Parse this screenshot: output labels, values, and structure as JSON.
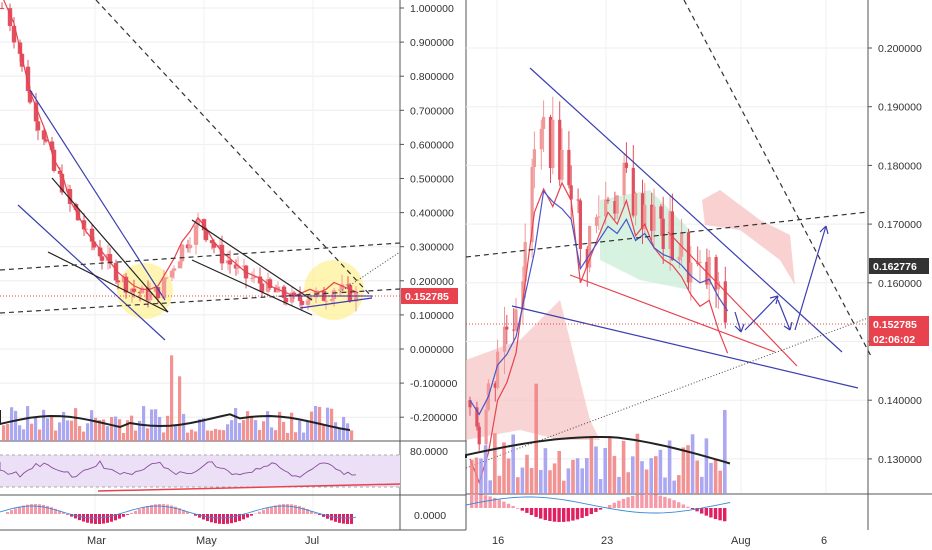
{
  "colors": {
    "up": "#f09999",
    "down": "#e0505f",
    "ma_red": "#e8424f",
    "ma_blue": "#4a55c8",
    "trend_blue": "#3a3fb0",
    "dashed": "#333333",
    "price_line": "#e8424f",
    "highlight": "#ffef8a",
    "rsi_fill": "#ece0f6",
    "vol_up": "#9c98ef",
    "vol_down": "#f08080",
    "badge_red": "#e8424f",
    "badge_dark": "#333333",
    "cloud_red": "#f7c2c2",
    "cloud_green": "#c8ecd6"
  },
  "chart_data": [
    {
      "type": "candlestick",
      "title": "",
      "x_ticks": [
        "Mar",
        "May",
        "Jul"
      ],
      "y_ticks": [
        "1.000000",
        "0.900000",
        "0.800000",
        "0.700000",
        "0.600000",
        "0.500000",
        "0.400000",
        "0.300000",
        "0.200000",
        "0.100000",
        "0.000000",
        "-0.100000",
        "-0.200000"
      ],
      "ylim": [
        -0.2,
        1.0
      ],
      "price_badge": "0.152785",
      "price_path": [
        [
          0,
          1.0
        ],
        [
          3,
          0.92
        ],
        [
          5,
          0.82
        ],
        [
          7,
          0.72
        ],
        [
          9,
          0.66
        ],
        [
          11,
          0.6
        ],
        [
          13,
          0.52
        ],
        [
          15,
          0.48
        ],
        [
          17,
          0.42
        ],
        [
          19,
          0.38
        ],
        [
          21,
          0.33
        ],
        [
          23,
          0.3
        ],
        [
          25,
          0.27
        ],
        [
          27,
          0.24
        ],
        [
          29,
          0.21
        ],
        [
          31,
          0.19
        ],
        [
          33,
          0.17
        ],
        [
          35,
          0.16
        ],
        [
          37,
          0.16
        ],
        [
          39,
          0.17
        ],
        [
          41,
          0.21
        ],
        [
          43,
          0.25
        ],
        [
          45,
          0.3
        ],
        [
          47,
          0.33
        ],
        [
          49,
          0.37
        ],
        [
          51,
          0.34
        ],
        [
          53,
          0.3
        ],
        [
          55,
          0.27
        ],
        [
          57,
          0.25
        ],
        [
          59,
          0.23
        ],
        [
          61,
          0.21
        ],
        [
          63,
          0.2
        ],
        [
          65,
          0.19
        ],
        [
          67,
          0.17
        ],
        [
          69,
          0.16
        ],
        [
          71,
          0.15
        ],
        [
          73,
          0.14
        ],
        [
          75,
          0.15
        ],
        [
          77,
          0.16
        ],
        [
          79,
          0.15
        ],
        [
          81,
          0.16
        ],
        [
          83,
          0.18
        ],
        [
          85,
          0.17
        ],
        [
          87,
          0.16
        ],
        [
          89,
          0.15
        ]
      ],
      "rsi_level": "80.0000",
      "macd_level": "0.0000"
    },
    {
      "type": "candlestick",
      "title": "",
      "x_ticks": [
        "16",
        "23",
        "Aug",
        "6"
      ],
      "y_ticks": [
        "0.200000",
        "0.190000",
        "0.180000",
        "0.170000",
        "0.160000",
        "0.150000",
        "0.140000",
        "0.130000"
      ],
      "ylim": [
        0.125,
        0.205
      ],
      "price_badges": [
        "0.162776",
        "0.152785",
        "02:06:02"
      ],
      "price_path": [
        [
          0,
          0.14
        ],
        [
          2,
          0.136
        ],
        [
          4,
          0.141
        ],
        [
          6,
          0.15
        ],
        [
          8,
          0.153
        ],
        [
          10,
          0.158
        ],
        [
          12,
          0.17
        ],
        [
          14,
          0.182
        ],
        [
          16,
          0.186
        ],
        [
          18,
          0.183
        ],
        [
          20,
          0.181
        ],
        [
          22,
          0.178
        ],
        [
          24,
          0.164
        ],
        [
          26,
          0.168
        ],
        [
          28,
          0.172
        ],
        [
          30,
          0.176
        ],
        [
          32,
          0.174
        ],
        [
          34,
          0.178
        ],
        [
          36,
          0.172
        ],
        [
          38,
          0.174
        ],
        [
          40,
          0.17
        ],
        [
          42,
          0.168
        ],
        [
          44,
          0.167
        ],
        [
          46,
          0.165
        ],
        [
          48,
          0.162
        ],
        [
          50,
          0.16
        ],
        [
          52,
          0.161
        ],
        [
          54,
          0.156
        ],
        [
          56,
          0.152
        ]
      ]
    }
  ]
}
